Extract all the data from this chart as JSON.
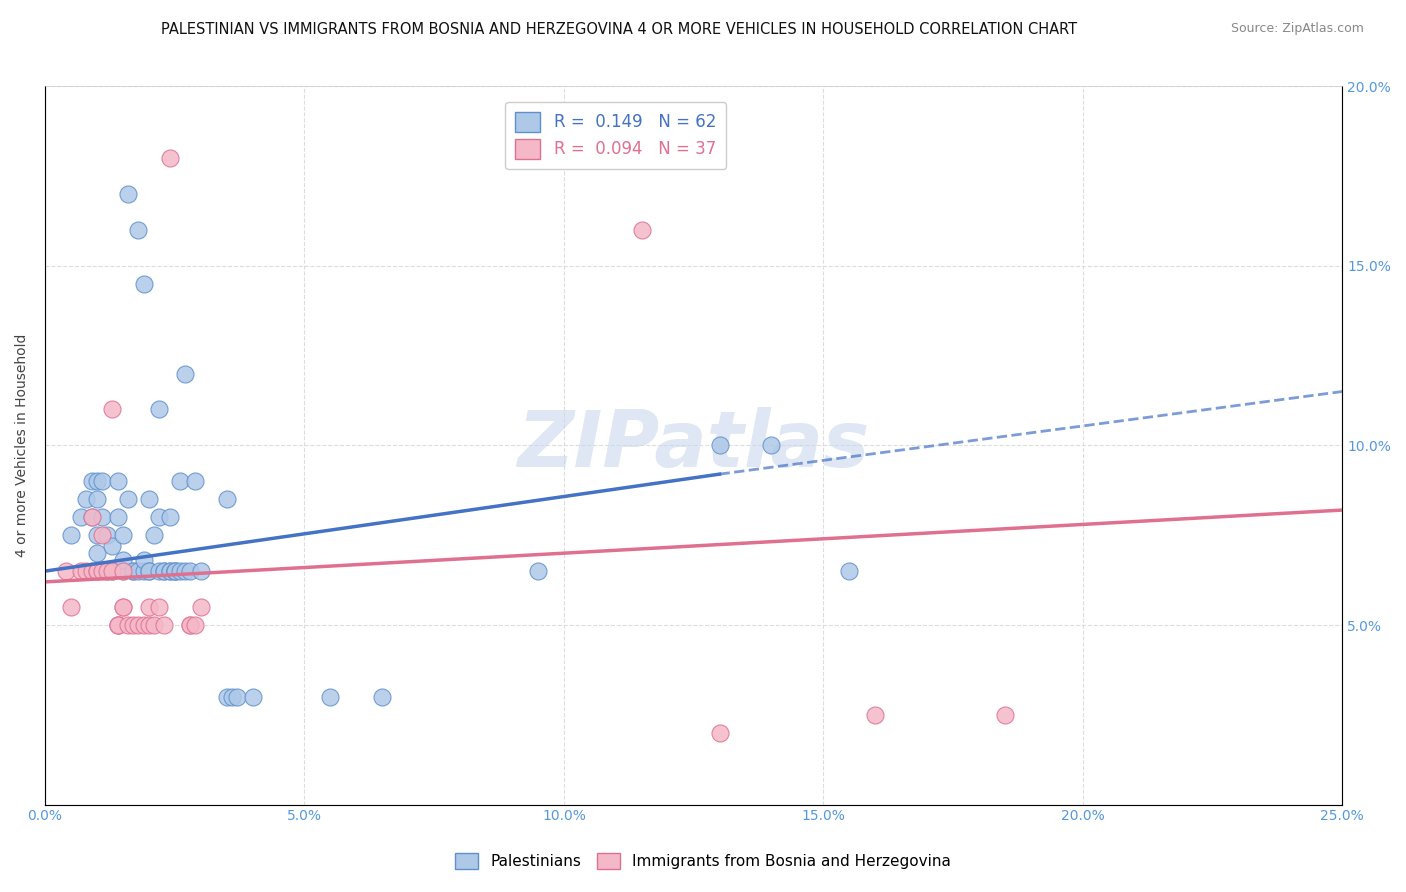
{
  "title": "PALESTINIAN VS IMMIGRANTS FROM BOSNIA AND HERZEGOVINA 4 OR MORE VEHICLES IN HOUSEHOLD CORRELATION CHART",
  "source": "Source: ZipAtlas.com",
  "ylabel": "4 or more Vehicles in Household",
  "xmin": 0.0,
  "xmax": 0.25,
  "ymin": 0.0,
  "ymax": 0.2,
  "blue_R": 0.149,
  "blue_N": 62,
  "pink_R": 0.094,
  "pink_N": 37,
  "legend_labels": [
    "Palestinians",
    "Immigrants from Bosnia and Herzegovina"
  ],
  "blue_color": "#AEC8E8",
  "pink_color": "#F4B8C8",
  "blue_edge_color": "#6090CC",
  "pink_edge_color": "#E07090",
  "blue_line_color": "#4472C4",
  "pink_line_color": "#E07090",
  "watermark_color": "#C8D8EC",
  "background_color": "#FFFFFF",
  "grid_color": "#DDDDDD",
  "tick_color": "#5599DD",
  "blue_scatter": [
    [
      0.005,
      0.075
    ],
    [
      0.007,
      0.08
    ],
    [
      0.008,
      0.085
    ],
    [
      0.009,
      0.09
    ],
    [
      0.009,
      0.08
    ],
    [
      0.01,
      0.09
    ],
    [
      0.01,
      0.085
    ],
    [
      0.01,
      0.075
    ],
    [
      0.01,
      0.07
    ],
    [
      0.011,
      0.09
    ],
    [
      0.011,
      0.08
    ],
    [
      0.012,
      0.075
    ],
    [
      0.012,
      0.065
    ],
    [
      0.013,
      0.065
    ],
    [
      0.013,
      0.072
    ],
    [
      0.014,
      0.09
    ],
    [
      0.014,
      0.08
    ],
    [
      0.015,
      0.065
    ],
    [
      0.015,
      0.075
    ],
    [
      0.015,
      0.068
    ],
    [
      0.016,
      0.17
    ],
    [
      0.016,
      0.085
    ],
    [
      0.017,
      0.065
    ],
    [
      0.017,
      0.065
    ],
    [
      0.018,
      0.065
    ],
    [
      0.018,
      0.16
    ],
    [
      0.019,
      0.145
    ],
    [
      0.019,
      0.065
    ],
    [
      0.019,
      0.068
    ],
    [
      0.02,
      0.065
    ],
    [
      0.02,
      0.085
    ],
    [
      0.02,
      0.065
    ],
    [
      0.021,
      0.075
    ],
    [
      0.022,
      0.065
    ],
    [
      0.022,
      0.08
    ],
    [
      0.022,
      0.11
    ],
    [
      0.023,
      0.065
    ],
    [
      0.023,
      0.065
    ],
    [
      0.024,
      0.065
    ],
    [
      0.024,
      0.08
    ],
    [
      0.024,
      0.065
    ],
    [
      0.025,
      0.065
    ],
    [
      0.025,
      0.065
    ],
    [
      0.025,
      0.065
    ],
    [
      0.026,
      0.09
    ],
    [
      0.026,
      0.065
    ],
    [
      0.027,
      0.065
    ],
    [
      0.027,
      0.12
    ],
    [
      0.028,
      0.065
    ],
    [
      0.029,
      0.09
    ],
    [
      0.03,
      0.065
    ],
    [
      0.035,
      0.085
    ],
    [
      0.035,
      0.03
    ],
    [
      0.036,
      0.03
    ],
    [
      0.037,
      0.03
    ],
    [
      0.04,
      0.03
    ],
    [
      0.055,
      0.03
    ],
    [
      0.065,
      0.03
    ],
    [
      0.095,
      0.065
    ],
    [
      0.13,
      0.1
    ],
    [
      0.14,
      0.1
    ],
    [
      0.155,
      0.065
    ]
  ],
  "pink_scatter": [
    [
      0.004,
      0.065
    ],
    [
      0.005,
      0.055
    ],
    [
      0.007,
      0.065
    ],
    [
      0.008,
      0.065
    ],
    [
      0.009,
      0.065
    ],
    [
      0.009,
      0.08
    ],
    [
      0.01,
      0.065
    ],
    [
      0.01,
      0.065
    ],
    [
      0.011,
      0.075
    ],
    [
      0.011,
      0.065
    ],
    [
      0.012,
      0.065
    ],
    [
      0.013,
      0.065
    ],
    [
      0.013,
      0.11
    ],
    [
      0.014,
      0.05
    ],
    [
      0.014,
      0.05
    ],
    [
      0.014,
      0.05
    ],
    [
      0.015,
      0.055
    ],
    [
      0.015,
      0.055
    ],
    [
      0.015,
      0.065
    ],
    [
      0.016,
      0.05
    ],
    [
      0.017,
      0.05
    ],
    [
      0.018,
      0.05
    ],
    [
      0.019,
      0.05
    ],
    [
      0.02,
      0.055
    ],
    [
      0.02,
      0.05
    ],
    [
      0.021,
      0.05
    ],
    [
      0.022,
      0.055
    ],
    [
      0.023,
      0.05
    ],
    [
      0.024,
      0.18
    ],
    [
      0.028,
      0.05
    ],
    [
      0.028,
      0.05
    ],
    [
      0.029,
      0.05
    ],
    [
      0.03,
      0.055
    ],
    [
      0.115,
      0.16
    ],
    [
      0.16,
      0.025
    ],
    [
      0.185,
      0.025
    ],
    [
      0.13,
      0.02
    ]
  ],
  "blue_line_x_solid_end": 0.13,
  "blue_line_start_y": 0.065,
  "blue_line_end_solid_y": 0.092,
  "blue_line_end_dashed_y": 0.115,
  "pink_line_start_y": 0.062,
  "pink_line_end_y": 0.082
}
